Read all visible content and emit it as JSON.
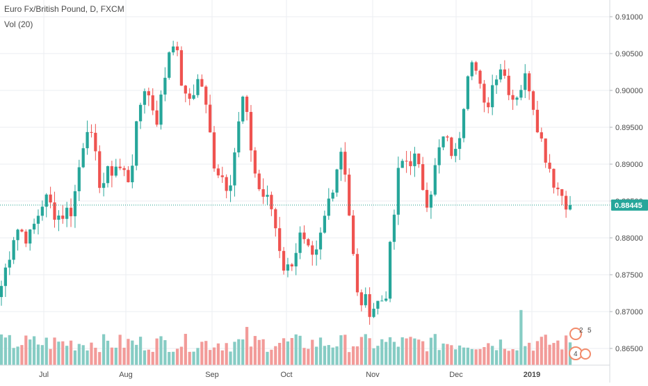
{
  "header": {
    "title": "Euro Fx/British Pound, D, FXCM",
    "volume_label": "Vol (20)"
  },
  "colors": {
    "up": "#26a69a",
    "down": "#ef5350",
    "vol_up": "#86ccc4",
    "vol_down": "#f29b99",
    "grid": "#ebeef2",
    "axis_text": "#4a4a4a",
    "price_line": "#1a9e8a",
    "price_tag": "#26a69a"
  },
  "chart_data": {
    "type": "candlestick",
    "title": "Euro Fx/British Pound, D, FXCM",
    "y_range": [
      0.8635,
      0.91
    ],
    "y_ticks": [
      "0.91000",
      "0.90500",
      "0.90000",
      "0.89500",
      "0.89000",
      "0.88500",
      "0.88000",
      "0.87500",
      "0.87000",
      "0.86500"
    ],
    "x_ticks": [
      "Jul",
      "Aug",
      "Sep",
      "Oct",
      "Nov",
      "Dec",
      "2019"
    ],
    "last_price": "0.88445",
    "last_price_value": 0.88445,
    "grid": true,
    "volume_series": "Vol (20)",
    "ohlc_waypoints": [
      0.8735,
      0.8815,
      0.88,
      0.8855,
      0.883,
      0.884,
      0.896,
      0.887,
      0.89,
      0.888,
      0.901,
      0.896,
      0.908,
      0.898,
      0.902,
      0.89,
      0.887,
      0.899,
      0.887,
      0.884,
      0.875,
      0.88,
      0.876,
      0.885,
      0.893,
      0.872,
      0.8705,
      0.872,
      0.89,
      0.891,
      0.885,
      0.8935,
      0.891,
      0.906,
      0.897,
      0.904,
      0.899,
      0.902,
      0.893,
      0.887,
      0.8845
    ],
    "volume_relative": [
      0.35,
      0.45,
      0.7,
      0.55
    ]
  }
}
